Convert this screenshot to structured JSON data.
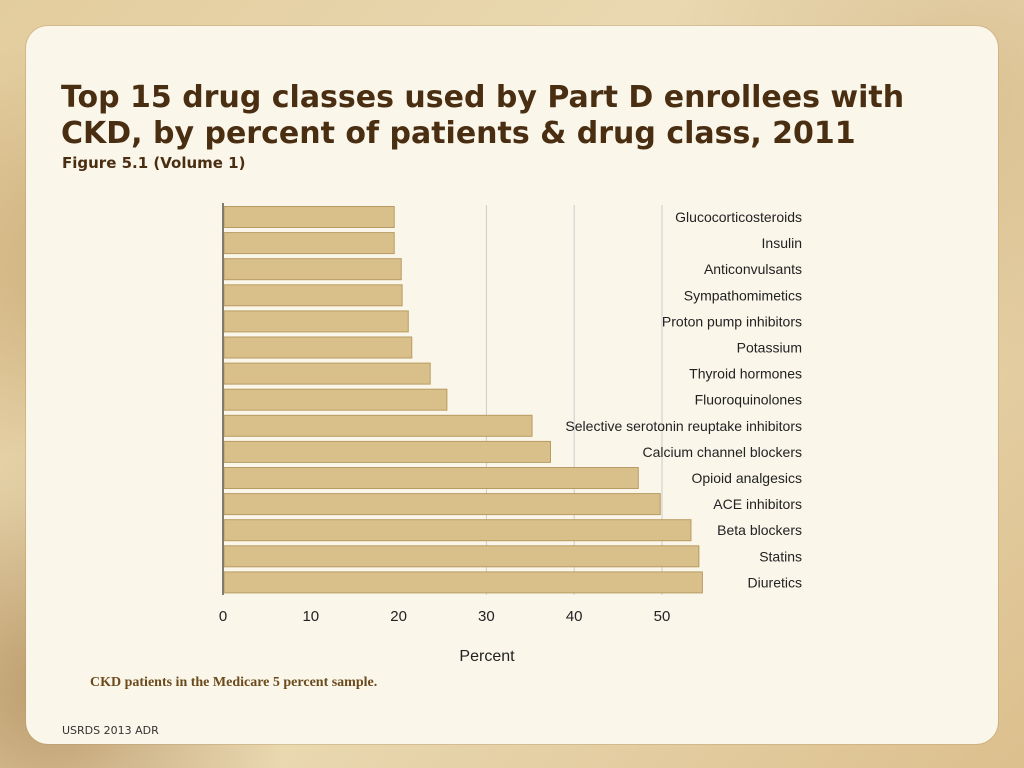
{
  "slide": {
    "title": "Top 15 drug classes used by Part D enrollees with CKD, by percent of patients & drug class, 2011",
    "subtitle": "Figure 5.1 (Volume 1)",
    "footnote": "CKD patients in the Medicare 5 percent sample.",
    "footer": "USRDS 2013 ADR"
  },
  "colors": {
    "bar_fill": "#d9c08a",
    "bar_stroke": "#b89b62",
    "grid": "#cccccc",
    "axis_text": "#222222"
  },
  "chart_data": {
    "type": "bar",
    "orientation": "horizontal",
    "title": "",
    "xlabel": "Percent",
    "ylabel": "",
    "xlim": [
      0,
      50
    ],
    "xticks": [
      0,
      10,
      20,
      30,
      40,
      50
    ],
    "grid": true,
    "categories": [
      "Glucocorticosteroids",
      "Insulin",
      "Anticonvulsants",
      "Sympathomimetics",
      "Proton pump inhibitors",
      "Potassium",
      "Thyroid hormones",
      "Fluoroquinolones",
      "Selective serotonin reuptake inhibitors",
      "Calcium channel blockers",
      "Opioid analgesics",
      "ACE inhibitors",
      "Beta blockers",
      "Statins",
      "Diuretics"
    ],
    "values": [
      19.5,
      19.5,
      20.3,
      20.4,
      21.1,
      21.5,
      23.6,
      25.5,
      35.2,
      37.3,
      47.3,
      49.8,
      53.3,
      54.2,
      54.6
    ]
  }
}
